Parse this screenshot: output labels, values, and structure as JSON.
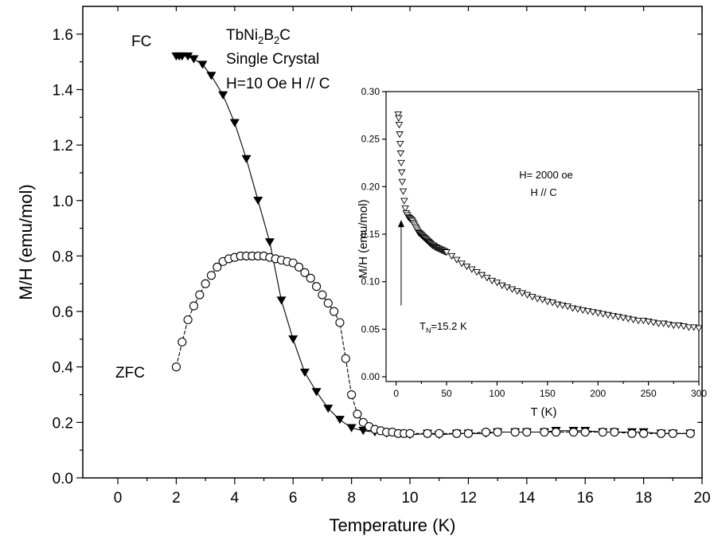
{
  "chart_data": [
    {
      "type": "line",
      "title": "",
      "xlabel": "Temperature (K)",
      "ylabel": "M/H (emu/mol)",
      "xlim": [
        -1.2,
        20
      ],
      "ylim": [
        0,
        1.7
      ],
      "xticks": [
        0,
        2,
        4,
        6,
        8,
        10,
        12,
        14,
        16,
        18,
        20
      ],
      "yticks": [
        0.0,
        0.2,
        0.4,
        0.6,
        0.8,
        1.0,
        1.2,
        1.4,
        1.6
      ],
      "xtick_labels": [
        "0",
        "2",
        "4",
        "6",
        "8",
        "10",
        "12",
        "14",
        "16",
        "18",
        "20"
      ],
      "ytick_labels": [
        "0.0",
        "0.2",
        "0.4",
        "0.6",
        "0.8",
        "1.0",
        "1.2",
        "1.4",
        "1.6"
      ],
      "grid": false,
      "annotations": {
        "compound_main": "TbNi",
        "sub1": "2",
        "compound_mid": "B",
        "sub2": "2",
        "compound_end": "C",
        "crystal": "Single Crystal",
        "field": "H=10 Oe   H // C"
      },
      "series": [
        {
          "name": "FC",
          "marker": "filled-down-triangle",
          "x": [
            2.0,
            2.1,
            2.2,
            2.4,
            2.6,
            2.9,
            3.2,
            3.6,
            4.0,
            4.4,
            4.8,
            5.2,
            5.6,
            6.0,
            6.4,
            6.8,
            7.2,
            7.6,
            8.0,
            8.4,
            8.8,
            9.2,
            9.6,
            10.0,
            10.6,
            11.0,
            11.6,
            12.0,
            12.6,
            13.0,
            13.6,
            14.0,
            14.6,
            15.0,
            15.6,
            16.0,
            16.6,
            17.0,
            17.6,
            18.0,
            18.6,
            19.0,
            19.6
          ],
          "y": [
            1.52,
            1.52,
            1.52,
            1.52,
            1.51,
            1.49,
            1.45,
            1.38,
            1.28,
            1.15,
            1.0,
            0.85,
            0.64,
            0.5,
            0.38,
            0.31,
            0.25,
            0.21,
            0.18,
            0.17,
            0.165,
            0.16,
            0.16,
            0.155,
            0.16,
            0.155,
            0.16,
            0.16,
            0.16,
            0.165,
            0.165,
            0.165,
            0.165,
            0.17,
            0.17,
            0.17,
            0.165,
            0.165,
            0.165,
            0.165,
            0.16,
            0.16,
            0.16
          ]
        },
        {
          "name": "ZFC",
          "marker": "open-circle",
          "x": [
            2.0,
            2.2,
            2.4,
            2.6,
            2.8,
            3.0,
            3.2,
            3.4,
            3.6,
            3.8,
            4.0,
            4.2,
            4.4,
            4.6,
            4.8,
            5.0,
            5.2,
            5.4,
            5.6,
            5.8,
            6.0,
            6.2,
            6.4,
            6.6,
            6.8,
            7.0,
            7.2,
            7.4,
            7.6,
            7.8,
            8.0,
            8.2,
            8.4,
            8.6,
            8.8,
            9.0,
            9.2,
            9.4,
            9.6,
            9.8,
            10.0,
            10.6,
            11.0,
            11.6,
            12.0,
            12.6,
            13.0,
            13.6,
            14.0,
            14.6,
            15.0,
            15.6,
            16.0,
            16.6,
            17.0,
            17.6,
            18.0,
            18.6,
            19.0,
            19.6
          ],
          "y": [
            0.4,
            0.49,
            0.57,
            0.62,
            0.66,
            0.7,
            0.73,
            0.76,
            0.78,
            0.79,
            0.795,
            0.8,
            0.8,
            0.8,
            0.8,
            0.8,
            0.795,
            0.79,
            0.785,
            0.78,
            0.775,
            0.76,
            0.74,
            0.72,
            0.69,
            0.66,
            0.63,
            0.6,
            0.56,
            0.43,
            0.3,
            0.23,
            0.2,
            0.185,
            0.175,
            0.17,
            0.165,
            0.165,
            0.16,
            0.16,
            0.16,
            0.16,
            0.16,
            0.16,
            0.16,
            0.165,
            0.165,
            0.165,
            0.165,
            0.165,
            0.165,
            0.165,
            0.165,
            0.165,
            0.165,
            0.16,
            0.16,
            0.16,
            0.16,
            0.16
          ]
        }
      ]
    },
    {
      "type": "scatter",
      "title": "",
      "xlabel": "T (K)",
      "ylabel": "M/H (emu/mol)",
      "xlim": [
        -10,
        300
      ],
      "ylim": [
        -0.005,
        0.3
      ],
      "xticks": [
        0,
        50,
        100,
        150,
        200,
        250,
        300
      ],
      "yticks": [
        0.0,
        0.05,
        0.1,
        0.15,
        0.2,
        0.25,
        0.3
      ],
      "xtick_labels": [
        "0",
        "50",
        "100",
        "150",
        "200",
        "250",
        "300"
      ],
      "ytick_labels": [
        "0.00",
        "0.05",
        "0.10",
        "0.15",
        "0.20",
        "0.25",
        "0.30"
      ],
      "grid": false,
      "annotations": {
        "field": "H= 2000 oe",
        "direction": "H // C",
        "tn_prefix": "T",
        "tn_sub": "N",
        "tn_value": "=15.2 K",
        "arrow_at_T": 15.2
      },
      "series": [
        {
          "name": "",
          "marker": "open-down-triangle",
          "x": [
            2,
            2.5,
            3,
            3.5,
            4,
            4.5,
            5,
            5.5,
            6,
            7,
            8,
            9,
            10,
            11,
            12,
            13,
            14,
            15,
            16,
            17,
            18,
            19,
            20,
            21,
            22,
            23,
            24,
            25,
            26,
            27,
            28,
            29,
            30,
            31,
            32,
            33,
            34,
            35,
            36,
            37,
            38,
            39,
            40,
            41,
            42,
            43,
            44,
            45,
            46,
            47,
            48,
            49,
            50,
            55,
            60,
            65,
            70,
            75,
            80,
            85,
            90,
            95,
            100,
            105,
            110,
            115,
            120,
            125,
            130,
            135,
            140,
            145,
            150,
            155,
            160,
            165,
            170,
            175,
            180,
            185,
            190,
            195,
            200,
            205,
            210,
            215,
            220,
            225,
            230,
            235,
            240,
            245,
            250,
            255,
            260,
            265,
            270,
            275,
            280,
            285,
            290,
            295,
            300
          ],
          "y": [
            0.276,
            0.272,
            0.265,
            0.255,
            0.245,
            0.235,
            0.225,
            0.215,
            0.205,
            0.195,
            0.185,
            0.177,
            0.172,
            0.17,
            0.168,
            0.167,
            0.166,
            0.165,
            0.164,
            0.162,
            0.16,
            0.158,
            0.156,
            0.154,
            0.152,
            0.151,
            0.15,
            0.149,
            0.148,
            0.147,
            0.146,
            0.145,
            0.144,
            0.143,
            0.142,
            0.141,
            0.14,
            0.139,
            0.138,
            0.138,
            0.137,
            0.136,
            0.136,
            0.135,
            0.135,
            0.134,
            0.134,
            0.133,
            0.133,
            0.132,
            0.132,
            0.131,
            0.131,
            0.127,
            0.123,
            0.119,
            0.116,
            0.113,
            0.11,
            0.107,
            0.104,
            0.101,
            0.099,
            0.096,
            0.094,
            0.092,
            0.09,
            0.088,
            0.086,
            0.084,
            0.082,
            0.081,
            0.079,
            0.078,
            0.076,
            0.075,
            0.074,
            0.072,
            0.071,
            0.07,
            0.069,
            0.068,
            0.067,
            0.066,
            0.065,
            0.064,
            0.063,
            0.062,
            0.061,
            0.06,
            0.059,
            0.059,
            0.058,
            0.057,
            0.056,
            0.056,
            0.055,
            0.054,
            0.054,
            0.053,
            0.052,
            0.052,
            0.051
          ]
        }
      ]
    }
  ]
}
